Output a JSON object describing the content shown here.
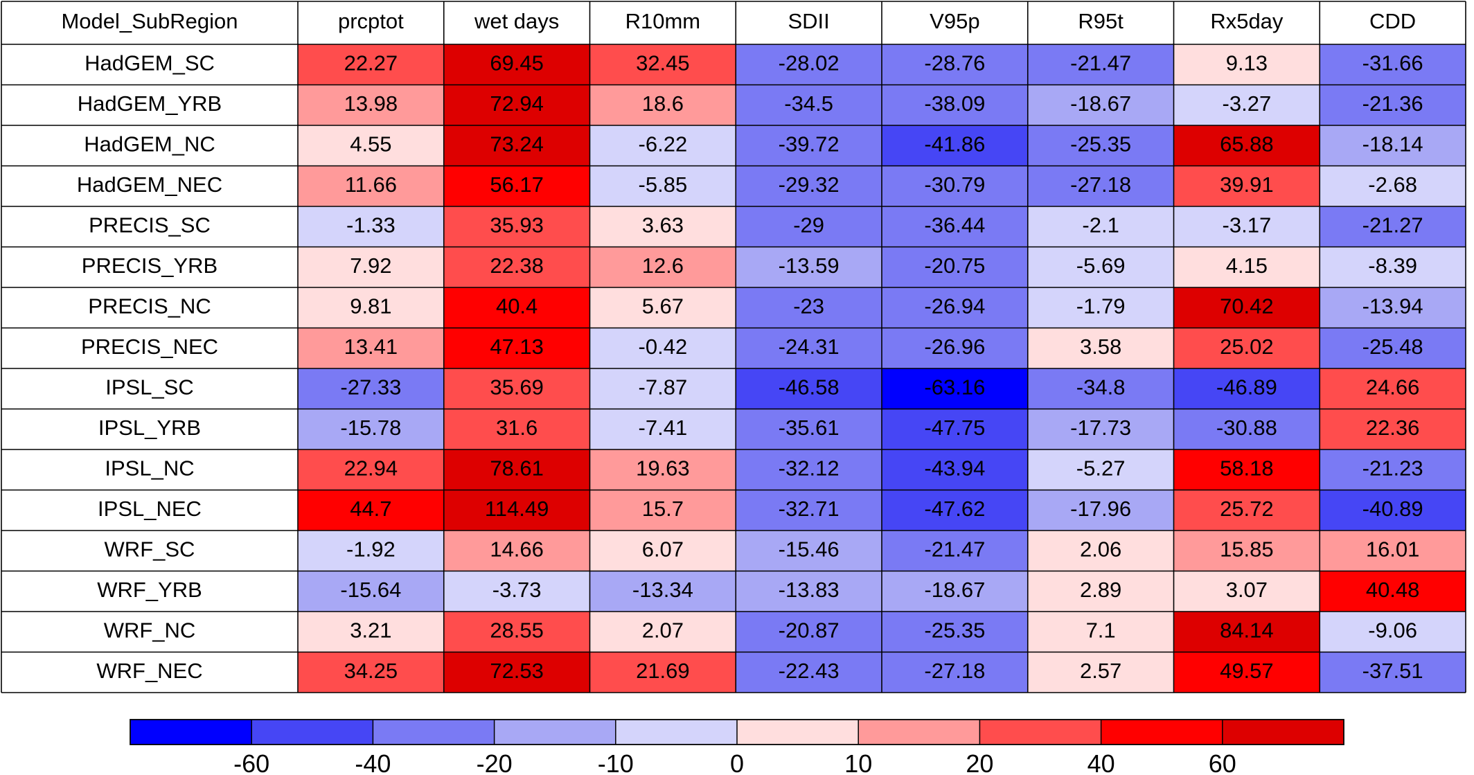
{
  "chart_data": {
    "type": "heatmap",
    "corner_label": "Model_SubRegion",
    "columns": [
      "prcptot",
      "wet days",
      "R10mm",
      "SDII",
      "V95p",
      "R95t",
      "Rx5day",
      "CDD"
    ],
    "rows": [
      {
        "label": "HadGEM_SC",
        "values": [
          22.27,
          69.45,
          32.45,
          -28.02,
          -28.76,
          -21.47,
          9.13,
          -31.66
        ]
      },
      {
        "label": "HadGEM_YRB",
        "values": [
          13.98,
          72.94,
          18.6,
          -34.5,
          -38.09,
          -18.67,
          -3.27,
          -21.36
        ]
      },
      {
        "label": "HadGEM_NC",
        "values": [
          4.55,
          73.24,
          -6.22,
          -39.72,
          -41.86,
          -25.35,
          65.88,
          -18.14
        ]
      },
      {
        "label": "HadGEM_NEC",
        "values": [
          11.66,
          56.17,
          -5.85,
          -29.32,
          -30.79,
          -27.18,
          39.91,
          -2.68
        ]
      },
      {
        "label": "PRECIS_SC",
        "values": [
          -1.33,
          35.93,
          3.63,
          -29,
          -36.44,
          -2.1,
          -3.17,
          -21.27
        ]
      },
      {
        "label": "PRECIS_YRB",
        "values": [
          7.92,
          22.38,
          12.6,
          -13.59,
          -20.75,
          -5.69,
          4.15,
          -8.39
        ]
      },
      {
        "label": "PRECIS_NC",
        "values": [
          9.81,
          40.4,
          5.67,
          -23,
          -26.94,
          -1.79,
          70.42,
          -13.94
        ]
      },
      {
        "label": "PRECIS_NEC",
        "values": [
          13.41,
          47.13,
          -0.42,
          -24.31,
          -26.96,
          3.58,
          25.02,
          -25.48
        ]
      },
      {
        "label": "IPSL_SC",
        "values": [
          -27.33,
          35.69,
          -7.87,
          -46.58,
          -63.16,
          -34.8,
          -46.89,
          24.66
        ]
      },
      {
        "label": "IPSL_YRB",
        "values": [
          -15.78,
          31.6,
          -7.41,
          -35.61,
          -47.75,
          -17.73,
          -30.88,
          22.36
        ]
      },
      {
        "label": "IPSL_NC",
        "values": [
          22.94,
          78.61,
          19.63,
          -32.12,
          -43.94,
          -5.27,
          58.18,
          -21.23
        ]
      },
      {
        "label": "IPSL_NEC",
        "values": [
          44.7,
          114.49,
          15.7,
          -32.71,
          -47.62,
          -17.96,
          25.72,
          -40.89
        ]
      },
      {
        "label": "WRF_SC",
        "values": [
          -1.92,
          14.66,
          6.07,
          -15.46,
          -21.47,
          2.06,
          15.85,
          16.01
        ]
      },
      {
        "label": "WRF_YRB",
        "values": [
          -15.64,
          -3.73,
          -13.34,
          -13.83,
          -18.67,
          2.89,
          3.07,
          40.48
        ]
      },
      {
        "label": "WRF_NC",
        "values": [
          3.21,
          28.55,
          2.07,
          -20.87,
          -25.35,
          7.1,
          84.14,
          -9.06
        ]
      },
      {
        "label": "WRF_NEC",
        "values": [
          34.25,
          72.53,
          21.69,
          -22.43,
          -27.18,
          2.57,
          49.57,
          -37.51
        ]
      }
    ],
    "colorbar": {
      "bounds": [
        -60,
        -40,
        -20,
        -10,
        0,
        10,
        20,
        40,
        60
      ],
      "tick_labels": [
        "-60",
        "-40",
        "-20",
        "-10",
        "0",
        "10",
        "20",
        "40",
        "60"
      ],
      "colors": [
        "#0000ff",
        "#4646f5",
        "#7a7af4",
        "#a8a8f5",
        "#d4d4fb",
        "#ffdede",
        "#ff9a9a",
        "#ff4d4d",
        "#ff0000",
        "#dd0000"
      ]
    }
  }
}
